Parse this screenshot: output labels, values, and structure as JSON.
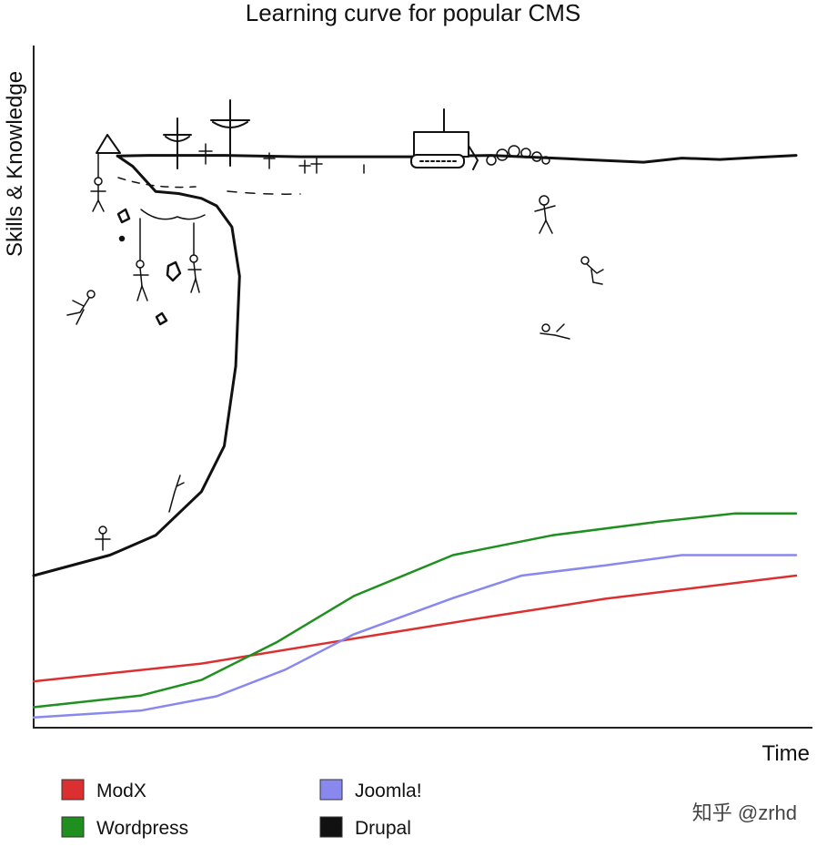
{
  "chart_data": {
    "type": "line",
    "title": "Learning curve for popular CMS",
    "xlabel": "Time",
    "ylabel": "Skills & Knowledge",
    "xlim": [
      0,
      100
    ],
    "ylim": [
      0,
      100
    ],
    "grid": false,
    "legend_position": "bottom-left",
    "series": [
      {
        "name": "ModX",
        "color": "#dc2f2f",
        "x": [
          0,
          22,
          45,
          60,
          75,
          100
        ],
        "y": [
          6.8,
          9.4,
          13.6,
          16.3,
          18.9,
          22.3
        ]
      },
      {
        "name": "Wordpress",
        "color": "#1f8f1f",
        "x": [
          0,
          14,
          22,
          32,
          42,
          55,
          68,
          82,
          92,
          100
        ],
        "y": [
          3.0,
          4.7,
          7.0,
          12.6,
          19.3,
          25.3,
          28.2,
          30.2,
          31.4,
          31.4
        ]
      },
      {
        "name": "Joomla!",
        "color": "#8888ee",
        "x": [
          0,
          14,
          24,
          33,
          42,
          55,
          64,
          75,
          85,
          100
        ],
        "y": [
          1.5,
          2.5,
          4.6,
          8.5,
          13.7,
          19.0,
          22.3,
          23.8,
          25.3,
          25.3
        ]
      },
      {
        "name": "Drupal",
        "color": "#111111",
        "x": [
          0,
          10,
          16,
          22,
          25,
          26.5,
          27,
          26,
          24,
          22,
          19,
          16,
          13,
          11
        ],
        "y": [
          22.3,
          25.3,
          28.2,
          34.6,
          41.3,
          53.0,
          66.2,
          73.4,
          76.5,
          77.6,
          78.3,
          78.6,
          82.3,
          83.8
        ]
      }
    ]
  },
  "legend": [
    {
      "label": "ModX",
      "color": "#dc2f2f"
    },
    {
      "label": "Joomla!",
      "color": "#8888ee"
    },
    {
      "label": "Wordpress",
      "color": "#1f8f1f"
    },
    {
      "label": "Drupal",
      "color": "#111111"
    }
  ],
  "plateau": {
    "x": [
      11,
      15,
      25,
      35,
      50,
      60,
      70,
      80,
      85,
      90,
      95,
      100
    ],
    "y": [
      83.8,
      83.9,
      83.9,
      83.7,
      83.7,
      83.9,
      83.4,
      82.9,
      83.5,
      83.3,
      83.6,
      83.9
    ]
  },
  "watermark": "知乎 @zrhd"
}
